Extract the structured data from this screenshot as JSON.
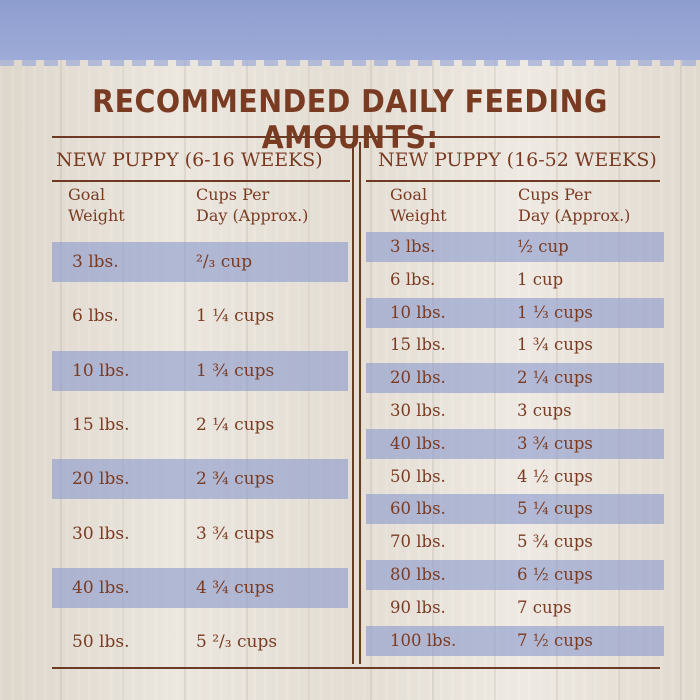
{
  "title": "RECOMMENDED DAILY FEEDING AMOUNTS:",
  "left_table": {
    "heading": "NEW PUPPY (6-16 WEEKS)",
    "col_weight": "Goal\nWeight",
    "col_cups": "Cups Per\nDay (Approx.)",
    "rows": [
      {
        "weight": "3 lbs.",
        "cups": "²/₃ cup"
      },
      {
        "weight": "6 lbs.",
        "cups": "1 ¼ cups"
      },
      {
        "weight": "10 lbs.",
        "cups": "1 ¾ cups"
      },
      {
        "weight": "15 lbs.",
        "cups": "2 ¼ cups"
      },
      {
        "weight": "20 lbs.",
        "cups": "2 ¾ cups"
      },
      {
        "weight": "30 lbs.",
        "cups": "3 ¾ cups"
      },
      {
        "weight": "40 lbs.",
        "cups": "4 ¾ cups"
      },
      {
        "weight": "50 lbs.",
        "cups": "5 ²/₃ cups"
      }
    ]
  },
  "right_table": {
    "heading": "NEW PUPPY (16-52 WEEKS)",
    "col_weight": "Goal\nWeight",
    "col_cups": "Cups Per\nDay (Approx.)",
    "rows": [
      {
        "weight": "3 lbs.",
        "cups": "½ cup"
      },
      {
        "weight": "6 lbs.",
        "cups": "1 cup"
      },
      {
        "weight": "10 lbs.",
        "cups": "1 ⅓ cups"
      },
      {
        "weight": "15 lbs.",
        "cups": "1 ¾ cups"
      },
      {
        "weight": "20 lbs.",
        "cups": "2 ¼ cups"
      },
      {
        "weight": "30 lbs.",
        "cups": "3 cups"
      },
      {
        "weight": "40 lbs.",
        "cups": "3 ¾ cups"
      },
      {
        "weight": "50 lbs.",
        "cups": "4 ½ cups"
      },
      {
        "weight": "60 lbs.",
        "cups": "5 ¼ cups"
      },
      {
        "weight": "70 lbs.",
        "cups": "5 ¾ cups"
      },
      {
        "weight": "80 lbs.",
        "cups": "6 ½ cups"
      },
      {
        "weight": "90 lbs.",
        "cups": "7 cups"
      },
      {
        "weight": "100 lbs.",
        "cups": "7 ½ cups"
      }
    ]
  },
  "colors": {
    "text": "#7a3b23",
    "band": "#8c9bcd",
    "top_band": "#9eabd8"
  }
}
